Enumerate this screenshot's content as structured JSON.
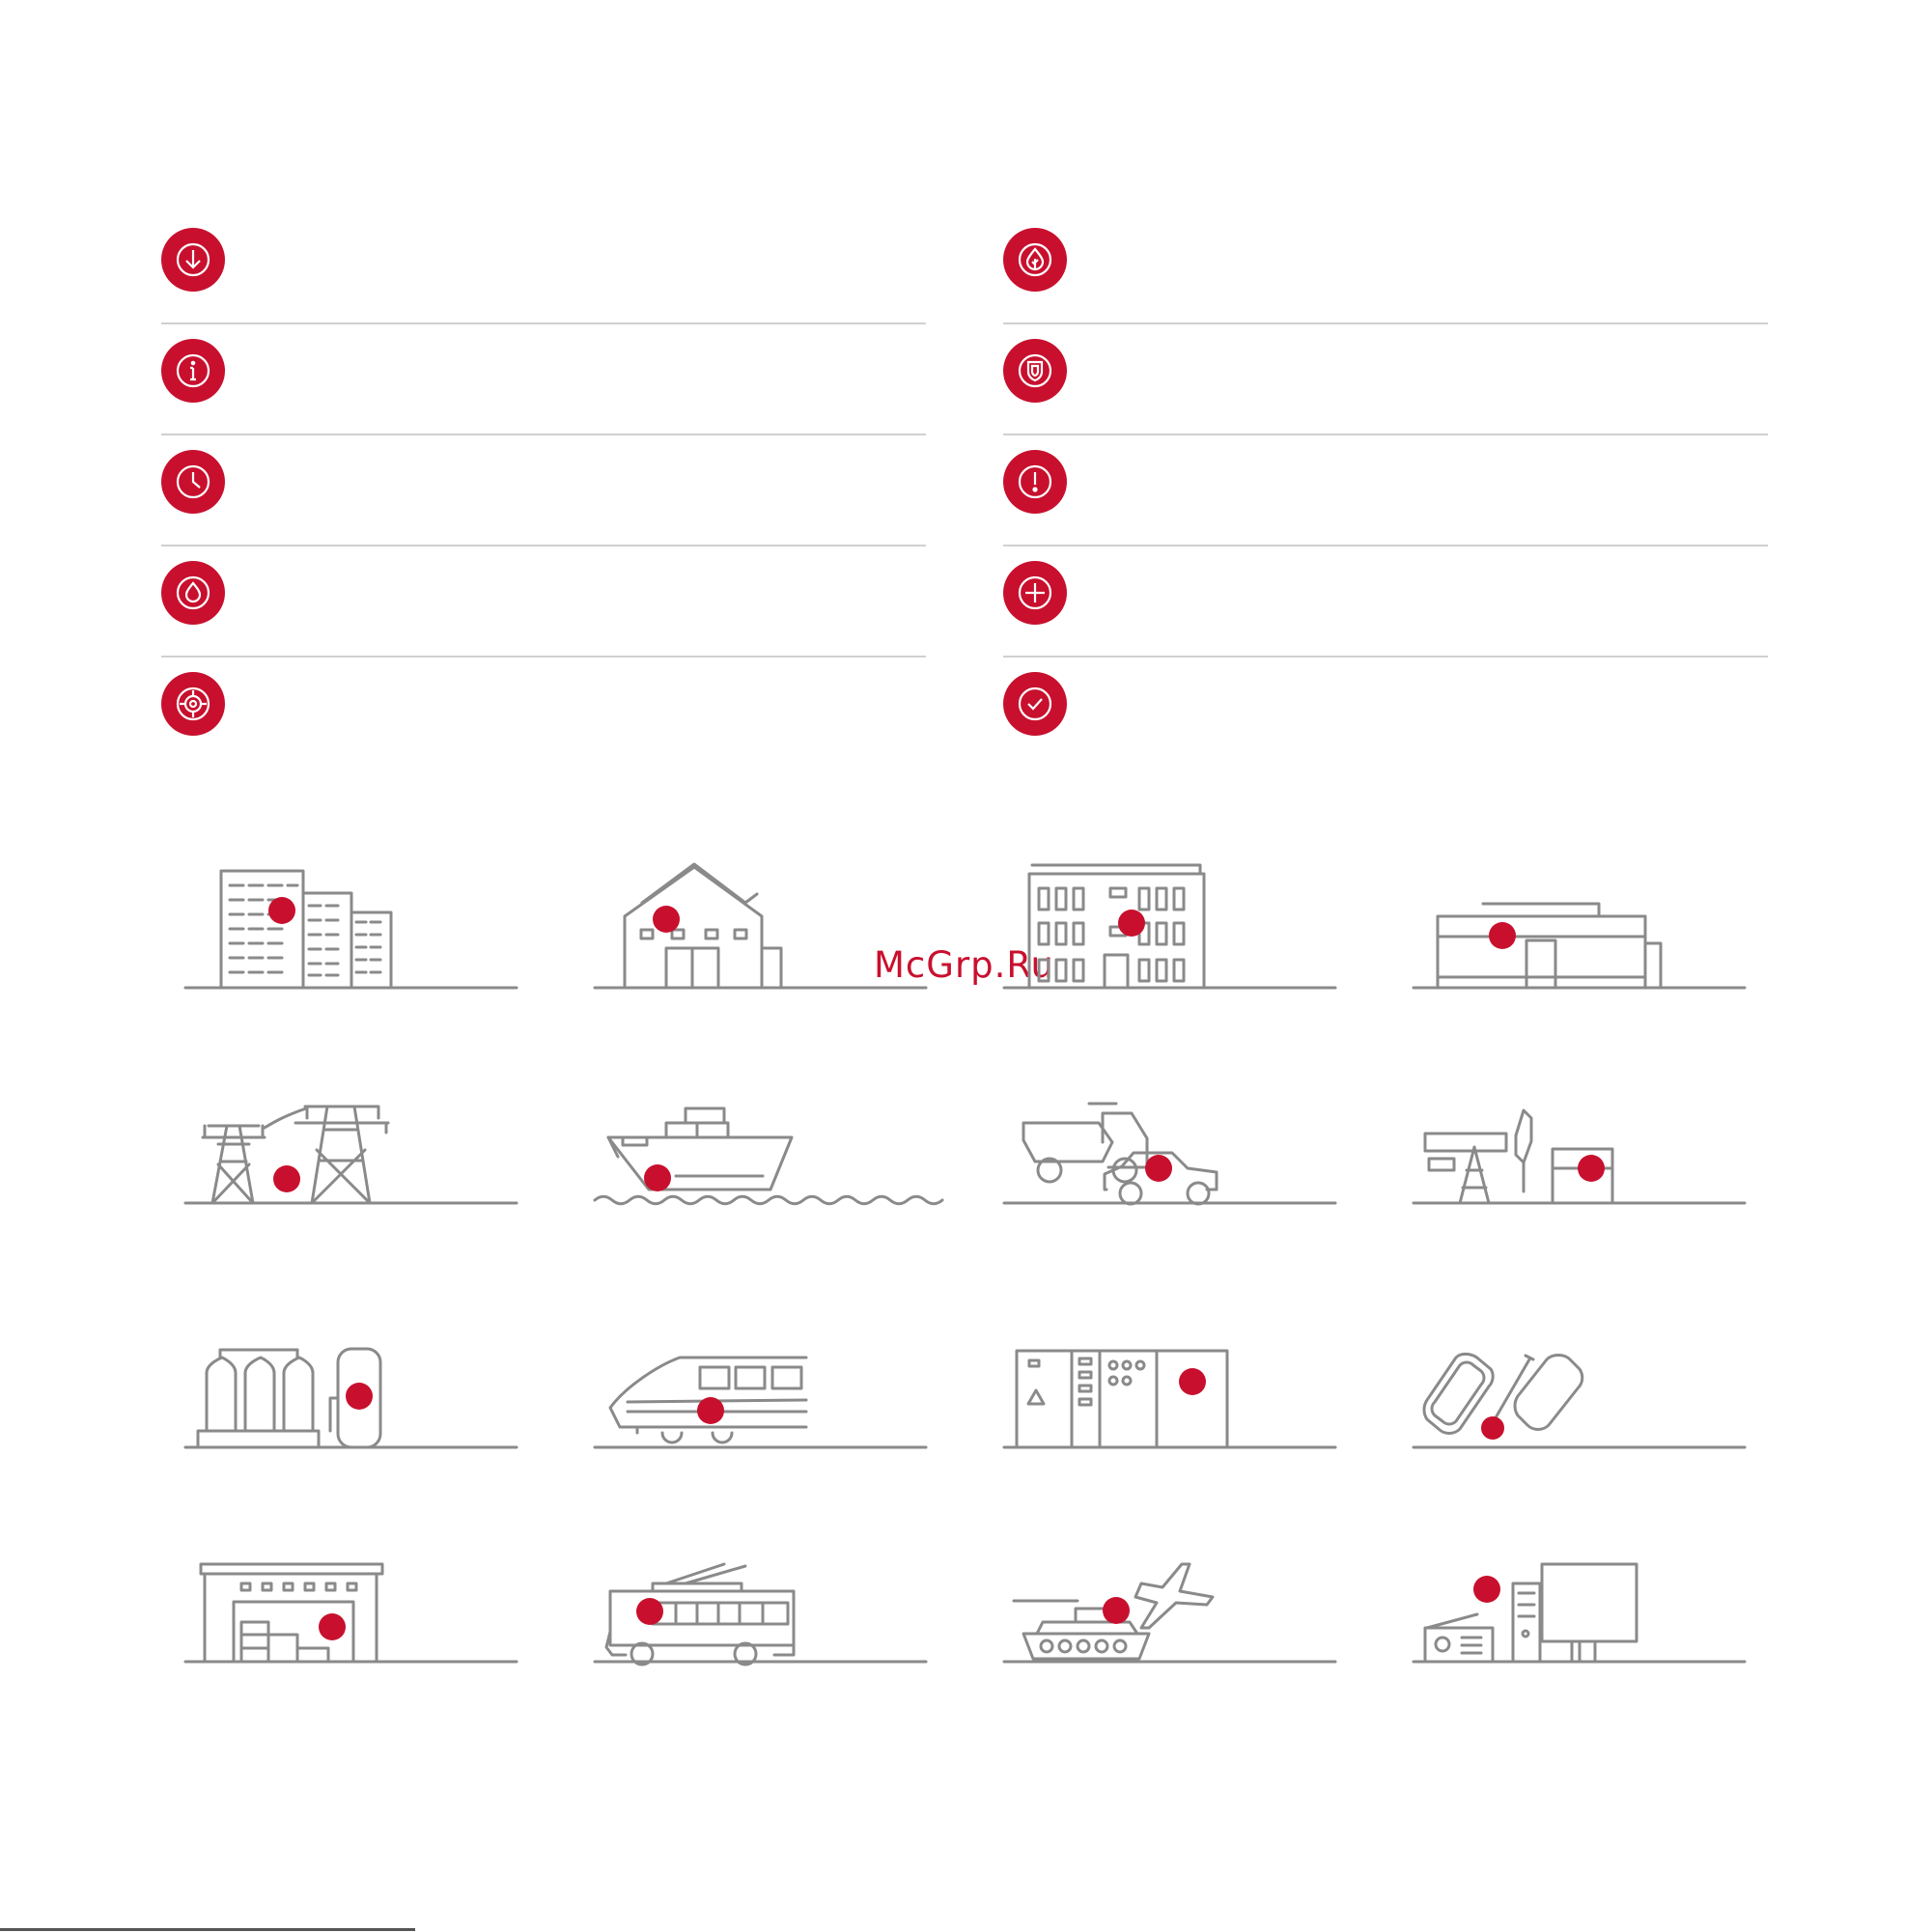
{
  "watermark": "McGrp.Ru",
  "accent_color": "#c8102e",
  "line_color": "#8a8a8a",
  "info_icons": [
    {
      "name": "download-icon"
    },
    {
      "name": "leaf-drop-icon"
    },
    {
      "name": "info-icon"
    },
    {
      "name": "shield-icon"
    },
    {
      "name": "clock-icon"
    },
    {
      "name": "warning-icon"
    },
    {
      "name": "water-drop-icon"
    },
    {
      "name": "plus-icon"
    },
    {
      "name": "target-icon"
    },
    {
      "name": "check-icon"
    }
  ],
  "industries": [
    "residential-buildings-icon",
    "country-house-icon",
    "office-building-icon",
    "retail-store-icon",
    "power-lines-icon",
    "cargo-ship-icon",
    "truck-and-car-icon",
    "oil-pump-icon",
    "storage-tanks-icon",
    "high-speed-train-icon",
    "electrical-cabinet-icon",
    "cable-drums-icon",
    "warehouse-icon",
    "trolleybus-icon",
    "tank-and-airplane-icon",
    "computer-workstation-icon"
  ]
}
